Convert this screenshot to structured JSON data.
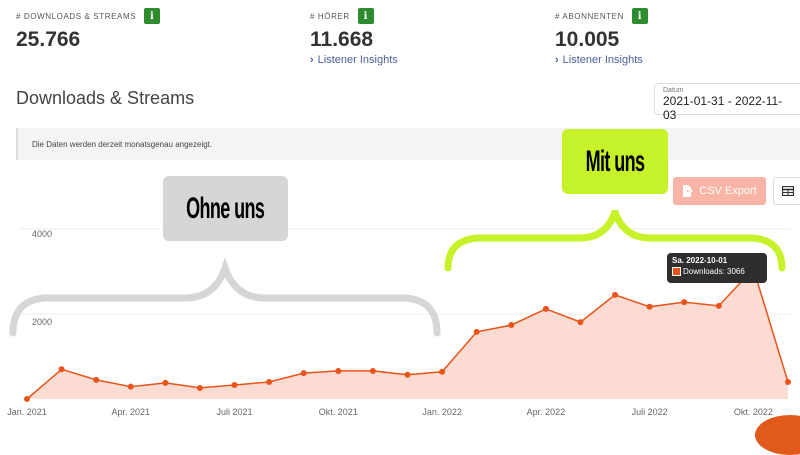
{
  "stats": [
    {
      "label": "# DOWNLOADS & STREAMS",
      "value": "25.766",
      "info": "i"
    },
    {
      "label": "# HÖRER",
      "value": "11.668",
      "info": "i",
      "link": "Listener Insights"
    },
    {
      "label": "# ABONNENTEN",
      "value": "10.005",
      "info": "i",
      "link": "Listener Insights"
    }
  ],
  "section": {
    "title": "Downloads & Streams"
  },
  "date_filter": {
    "label": "Datum",
    "value": "2021-01-31 - 2022-11-03"
  },
  "notice": "Die Daten werden derzeit monatsgenau angezeigt.",
  "toolbar": {
    "csv_label": "CSV Export",
    "table_icon": "table-icon"
  },
  "annotations": {
    "ohne": "Ohne uns",
    "mit": "Mit uns"
  },
  "tooltip": {
    "date": "Sa. 2022-10-01",
    "series": "Downloads",
    "value": "3066",
    "text": "Downloads: 3066"
  },
  "colors": {
    "line": "#e8541a",
    "fill": "#fcdcd2",
    "mit_accent": "#c6f22a",
    "ohne_accent": "#d6d6d6",
    "badge": "#2e8b2e",
    "link": "#4a5f9c"
  },
  "chart_data": {
    "type": "area",
    "title": "Downloads & Streams",
    "xlabel": "",
    "ylabel": "",
    "ylim": [
      0,
      4600
    ],
    "yticks": [
      2000,
      4000
    ],
    "grid": true,
    "legend": "none",
    "x_tick_labels": [
      "Jan. 2021",
      "Apr. 2021",
      "Juli 2021",
      "Okt. 2021",
      "Jan. 2022",
      "Apr. 2022",
      "Juli 2022",
      "Okt. 2022"
    ],
    "categories": [
      "2021-01",
      "2021-02",
      "2021-03",
      "2021-04",
      "2021-05",
      "2021-06",
      "2021-07",
      "2021-08",
      "2021-09",
      "2021-10",
      "2021-11",
      "2021-12",
      "2022-01",
      "2022-02",
      "2022-03",
      "2022-04",
      "2022-05",
      "2022-06",
      "2022-07",
      "2022-08",
      "2022-09",
      "2022-10",
      "2022-11"
    ],
    "series": [
      {
        "name": "Downloads",
        "values": [
          0,
          700,
          450,
          290,
          380,
          260,
          330,
          400,
          610,
          660,
          660,
          570,
          640,
          1580,
          1740,
          2120,
          1810,
          2450,
          2170,
          2280,
          2190,
          3066,
          400
        ]
      }
    ],
    "annotations": [
      {
        "text": "Ohne uns",
        "range": [
          "2021-01",
          "2022-01"
        ]
      },
      {
        "text": "Mit uns",
        "range": [
          "2022-01",
          "2022-11"
        ]
      },
      {
        "tooltip": "Sa. 2022-10-01 — Downloads: 3066"
      }
    ]
  }
}
